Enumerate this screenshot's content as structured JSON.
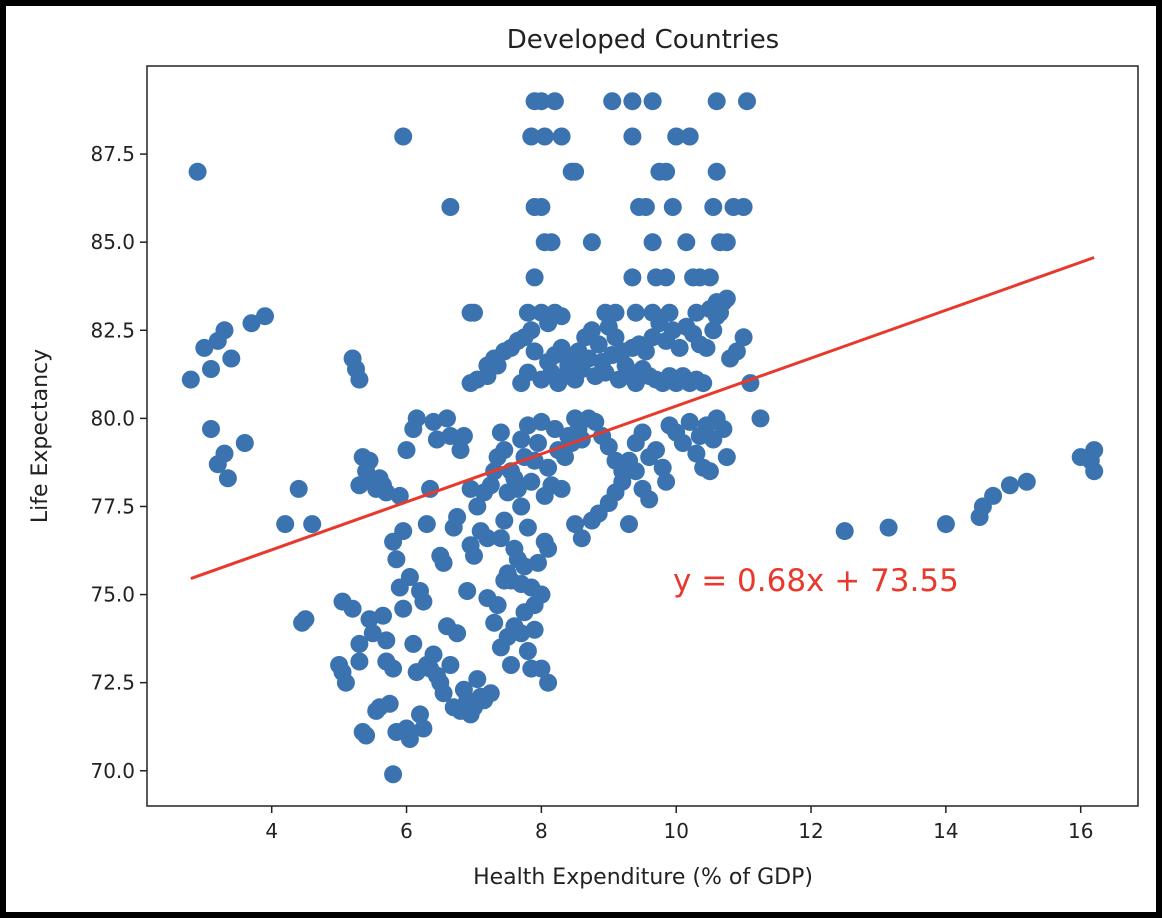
{
  "chart_data": {
    "type": "scatter",
    "title": "Developed Countries",
    "xlabel": "Health Expenditure (% of GDP)",
    "ylabel": "Life Expectancy",
    "xlim": [
      2.15,
      16.85
    ],
    "ylim": [
      69.0,
      90.0
    ],
    "xticks": [
      4,
      6,
      8,
      10,
      12,
      14,
      16
    ],
    "xtick_labels": [
      "4",
      "6",
      "8",
      "10",
      "12",
      "14",
      "16"
    ],
    "yticks": [
      70.0,
      72.5,
      75.0,
      77.5,
      80.0,
      82.5,
      85.0,
      87.5
    ],
    "ytick_labels": [
      "70.0",
      "72.5",
      "75.0",
      "77.5",
      "80.0",
      "82.5",
      "85.0",
      "87.5"
    ],
    "grid": false,
    "point_color": "#3b73b0",
    "line_color": "#e8392c",
    "regression": {
      "slope": 0.68,
      "intercept": 73.55,
      "x_range": [
        2.8,
        16.2
      ],
      "label": "y = 0.68x + 73.55"
    },
    "points": [
      [
        2.9,
        87.0
      ],
      [
        2.8,
        81.1
      ],
      [
        3.0,
        82.0
      ],
      [
        3.1,
        81.4
      ],
      [
        3.2,
        82.2
      ],
      [
        3.3,
        82.5
      ],
      [
        3.4,
        81.7
      ],
      [
        3.1,
        79.7
      ],
      [
        3.2,
        78.7
      ],
      [
        3.3,
        79.0
      ],
      [
        3.35,
        78.3
      ],
      [
        3.6,
        79.3
      ],
      [
        3.7,
        82.7
      ],
      [
        3.9,
        82.9
      ],
      [
        4.2,
        77.0
      ],
      [
        4.4,
        78.0
      ],
      [
        4.6,
        77.0
      ],
      [
        4.5,
        74.3
      ],
      [
        4.45,
        74.2
      ],
      [
        5.0,
        73.0
      ],
      [
        5.05,
        72.8
      ],
      [
        5.1,
        72.5
      ],
      [
        5.05,
        74.8
      ],
      [
        5.2,
        74.6
      ],
      [
        5.3,
        73.6
      ],
      [
        5.3,
        73.1
      ],
      [
        5.35,
        71.1
      ],
      [
        5.4,
        71.0
      ],
      [
        5.45,
        74.3
      ],
      [
        5.5,
        73.9
      ],
      [
        5.55,
        71.7
      ],
      [
        5.6,
        71.8
      ],
      [
        5.65,
        74.4
      ],
      [
        5.7,
        73.7
      ],
      [
        5.7,
        73.1
      ],
      [
        5.75,
        71.9
      ],
      [
        5.8,
        72.9
      ],
      [
        5.8,
        69.9
      ],
      [
        5.85,
        71.1
      ],
      [
        5.9,
        75.2
      ],
      [
        5.95,
        74.6
      ],
      [
        6.0,
        71.2
      ],
      [
        6.05,
        70.9
      ],
      [
        6.1,
        73.6
      ],
      [
        6.15,
        72.8
      ],
      [
        6.2,
        71.6
      ],
      [
        6.25,
        71.2
      ],
      [
        6.3,
        73.0
      ],
      [
        6.35,
        72.9
      ],
      [
        6.4,
        73.3
      ],
      [
        6.45,
        72.7
      ],
      [
        6.5,
        72.5
      ],
      [
        6.55,
        72.2
      ],
      [
        6.6,
        74.1
      ],
      [
        6.65,
        73.0
      ],
      [
        6.7,
        71.8
      ],
      [
        6.75,
        73.9
      ],
      [
        6.8,
        71.7
      ],
      [
        6.85,
        72.3
      ],
      [
        6.9,
        72.0
      ],
      [
        6.95,
        71.6
      ],
      [
        7.0,
        71.8
      ],
      [
        7.05,
        72.6
      ],
      [
        7.1,
        72.1
      ],
      [
        7.15,
        72.0
      ],
      [
        7.25,
        72.2
      ],
      [
        5.2,
        81.7
      ],
      [
        5.25,
        81.4
      ],
      [
        5.3,
        81.1
      ],
      [
        5.3,
        78.1
      ],
      [
        5.35,
        78.9
      ],
      [
        5.4,
        78.5
      ],
      [
        5.45,
        78.8
      ],
      [
        5.5,
        78.2
      ],
      [
        5.55,
        78.0
      ],
      [
        5.6,
        78.3
      ],
      [
        5.65,
        78.1
      ],
      [
        5.7,
        77.9
      ],
      [
        5.8,
        76.5
      ],
      [
        5.9,
        77.8
      ],
      [
        5.85,
        76.0
      ],
      [
        5.95,
        76.8
      ],
      [
        6.0,
        79.1
      ],
      [
        6.05,
        75.5
      ],
      [
        6.1,
        79.7
      ],
      [
        6.15,
        80.0
      ],
      [
        6.2,
        75.1
      ],
      [
        6.25,
        74.8
      ],
      [
        6.3,
        77.0
      ],
      [
        6.35,
        78.0
      ],
      [
        6.4,
        79.9
      ],
      [
        6.45,
        79.4
      ],
      [
        6.5,
        76.1
      ],
      [
        6.55,
        75.9
      ],
      [
        6.6,
        80.0
      ],
      [
        6.65,
        79.5
      ],
      [
        6.7,
        76.9
      ],
      [
        6.75,
        77.2
      ],
      [
        6.8,
        79.1
      ],
      [
        6.85,
        79.5
      ],
      [
        6.9,
        75.1
      ],
      [
        6.95,
        76.4
      ],
      [
        6.95,
        78.0
      ],
      [
        7.0,
        76.1
      ],
      [
        7.05,
        77.5
      ],
      [
        7.1,
        76.8
      ],
      [
        7.15,
        77.9
      ],
      [
        7.2,
        76.6
      ],
      [
        7.25,
        78.1
      ],
      [
        6.65,
        86.0
      ],
      [
        5.95,
        88.0
      ],
      [
        6.95,
        83.0
      ],
      [
        7.0,
        83.0
      ],
      [
        6.95,
        81.0
      ],
      [
        7.05,
        81.1
      ],
      [
        7.2,
        81.5
      ],
      [
        7.3,
        81.7
      ],
      [
        7.45,
        81.9
      ],
      [
        7.55,
        82.0
      ],
      [
        7.65,
        82.2
      ],
      [
        7.75,
        82.3
      ],
      [
        7.85,
        82.5
      ],
      [
        7.3,
        78.5
      ],
      [
        7.35,
        78.9
      ],
      [
        7.4,
        79.6
      ],
      [
        7.45,
        79.1
      ],
      [
        7.5,
        77.9
      ],
      [
        7.55,
        78.5
      ],
      [
        7.6,
        78.3
      ],
      [
        7.65,
        78.0
      ],
      [
        7.7,
        79.4
      ],
      [
        7.75,
        78.9
      ],
      [
        7.8,
        79.8
      ],
      [
        7.85,
        78.2
      ],
      [
        7.9,
        78.8
      ],
      [
        7.95,
        79.3
      ],
      [
        8.0,
        79.9
      ],
      [
        8.05,
        77.8
      ],
      [
        8.1,
        78.6
      ],
      [
        8.15,
        78.1
      ],
      [
        8.2,
        79.7
      ],
      [
        8.25,
        79.1
      ],
      [
        8.3,
        78.0
      ],
      [
        8.35,
        78.9
      ],
      [
        8.4,
        79.5
      ],
      [
        8.45,
        79.3
      ],
      [
        8.5,
        80.0
      ],
      [
        8.55,
        79.7
      ],
      [
        8.6,
        79.4
      ],
      [
        8.7,
        80.0
      ],
      [
        8.8,
        79.9
      ],
      [
        8.9,
        79.5
      ],
      [
        9.0,
        79.2
      ],
      [
        9.1,
        78.8
      ],
      [
        9.2,
        78.5
      ],
      [
        9.3,
        78.8
      ],
      [
        9.4,
        79.3
      ],
      [
        9.5,
        79.6
      ],
      [
        9.6,
        78.9
      ],
      [
        9.7,
        79.1
      ],
      [
        7.4,
        76.6
      ],
      [
        7.45,
        77.1
      ],
      [
        7.5,
        75.6
      ],
      [
        7.55,
        75.4
      ],
      [
        7.6,
        76.3
      ],
      [
        7.65,
        76.0
      ],
      [
        7.7,
        77.5
      ],
      [
        7.75,
        75.8
      ],
      [
        7.8,
        76.9
      ],
      [
        7.85,
        75.2
      ],
      [
        7.9,
        74.7
      ],
      [
        7.95,
        75.9
      ],
      [
        8.0,
        75.0
      ],
      [
        8.05,
        76.5
      ],
      [
        8.1,
        76.3
      ],
      [
        8.5,
        77.0
      ],
      [
        8.6,
        76.6
      ],
      [
        8.75,
        77.1
      ],
      [
        8.85,
        77.3
      ],
      [
        9.0,
        77.6
      ],
      [
        9.1,
        77.9
      ],
      [
        9.2,
        78.2
      ],
      [
        9.3,
        77.0
      ],
      [
        9.4,
        78.5
      ],
      [
        9.5,
        78.0
      ],
      [
        9.6,
        77.7
      ],
      [
        7.2,
        74.9
      ],
      [
        7.3,
        74.2
      ],
      [
        7.35,
        74.7
      ],
      [
        7.4,
        73.5
      ],
      [
        7.45,
        75.4
      ],
      [
        7.5,
        73.8
      ],
      [
        7.55,
        73.0
      ],
      [
        7.6,
        74.1
      ],
      [
        7.7,
        73.9
      ],
      [
        7.75,
        74.5
      ],
      [
        7.8,
        73.4
      ],
      [
        7.85,
        72.9
      ],
      [
        7.9,
        74.0
      ],
      [
        8.0,
        72.9
      ],
      [
        8.1,
        72.5
      ],
      [
        8.0,
        75.0
      ],
      [
        7.7,
        75.3
      ],
      [
        7.2,
        81.2
      ],
      [
        7.35,
        81.5
      ],
      [
        7.7,
        81.0
      ],
      [
        7.8,
        81.3
      ],
      [
        7.9,
        81.9
      ],
      [
        8.0,
        81.1
      ],
      [
        8.1,
        81.6
      ],
      [
        8.15,
        81.3
      ],
      [
        8.2,
        81.8
      ],
      [
        8.25,
        81.0
      ],
      [
        8.3,
        82.0
      ],
      [
        8.35,
        81.2
      ],
      [
        8.4,
        81.5
      ],
      [
        8.45,
        81.7
      ],
      [
        8.5,
        81.1
      ],
      [
        8.55,
        81.9
      ],
      [
        8.6,
        81.4
      ],
      [
        8.65,
        82.3
      ],
      [
        8.7,
        81.7
      ],
      [
        8.75,
        82.5
      ],
      [
        8.8,
        81.2
      ],
      [
        8.85,
        82.1
      ],
      [
        8.9,
        81.6
      ],
      [
        8.95,
        81.3
      ],
      [
        9.0,
        82.6
      ],
      [
        9.05,
        81.8
      ],
      [
        9.1,
        82.3
      ],
      [
        9.15,
        81.1
      ],
      [
        9.2,
        81.9
      ],
      [
        9.25,
        81.5
      ],
      [
        9.3,
        81.2
      ],
      [
        9.4,
        81.0
      ],
      [
        9.5,
        81.4
      ],
      [
        9.6,
        81.2
      ],
      [
        9.7,
        81.1
      ],
      [
        9.8,
        81.0
      ],
      [
        9.9,
        81.2
      ],
      [
        10.0,
        81.0
      ],
      [
        10.1,
        81.2
      ],
      [
        10.2,
        81.0
      ],
      [
        10.3,
        81.1
      ],
      [
        10.4,
        81.0
      ],
      [
        9.35,
        82.0
      ],
      [
        9.45,
        82.1
      ],
      [
        9.55,
        81.9
      ],
      [
        9.65,
        82.3
      ],
      [
        9.75,
        82.7
      ],
      [
        9.85,
        82.2
      ],
      [
        9.95,
        82.5
      ],
      [
        10.05,
        82.0
      ],
      [
        10.15,
        82.6
      ],
      [
        10.25,
        82.4
      ],
      [
        10.35,
        82.1
      ],
      [
        10.45,
        82.0
      ],
      [
        10.55,
        82.5
      ],
      [
        10.6,
        82.9
      ],
      [
        10.65,
        83.0
      ],
      [
        10.7,
        83.3
      ],
      [
        10.75,
        83.4
      ],
      [
        10.8,
        81.7
      ],
      [
        10.9,
        81.9
      ],
      [
        11.0,
        82.3
      ],
      [
        11.1,
        81.0
      ],
      [
        11.25,
        80.0
      ],
      [
        9.9,
        79.8
      ],
      [
        10.0,
        79.6
      ],
      [
        10.1,
        79.3
      ],
      [
        10.2,
        79.9
      ],
      [
        10.3,
        79.0
      ],
      [
        10.35,
        79.5
      ],
      [
        10.4,
        78.6
      ],
      [
        10.45,
        79.8
      ],
      [
        10.5,
        78.5
      ],
      [
        10.55,
        79.4
      ],
      [
        10.6,
        80.0
      ],
      [
        10.7,
        79.7
      ],
      [
        10.75,
        78.9
      ],
      [
        9.8,
        78.6
      ],
      [
        9.85,
        78.2
      ],
      [
        7.8,
        83.0
      ],
      [
        7.9,
        84.0
      ],
      [
        8.0,
        83.0
      ],
      [
        8.1,
        82.7
      ],
      [
        8.2,
        83.0
      ],
      [
        8.3,
        82.9
      ],
      [
        8.95,
        83.0
      ],
      [
        9.1,
        83.0
      ],
      [
        9.4,
        83.0
      ],
      [
        9.65,
        83.0
      ],
      [
        9.9,
        83.0
      ],
      [
        10.3,
        83.0
      ],
      [
        10.5,
        83.1
      ],
      [
        10.6,
        83.3
      ],
      [
        7.9,
        86.0
      ],
      [
        8.0,
        86.0
      ],
      [
        8.05,
        85.0
      ],
      [
        8.15,
        85.0
      ],
      [
        8.45,
        87.0
      ],
      [
        8.5,
        87.0
      ],
      [
        8.75,
        85.0
      ],
      [
        9.35,
        84.0
      ],
      [
        9.45,
        86.0
      ],
      [
        9.55,
        86.0
      ],
      [
        9.65,
        85.0
      ],
      [
        9.7,
        84.0
      ],
      [
        9.75,
        87.0
      ],
      [
        9.85,
        84.0
      ],
      [
        9.95,
        86.0
      ],
      [
        10.15,
        85.0
      ],
      [
        10.25,
        84.0
      ],
      [
        10.35,
        84.0
      ],
      [
        10.5,
        84.0
      ],
      [
        10.55,
        86.0
      ],
      [
        10.65,
        85.0
      ],
      [
        10.75,
        85.0
      ],
      [
        10.85,
        86.0
      ],
      [
        11.0,
        86.0
      ],
      [
        9.85,
        87.0
      ],
      [
        10.6,
        87.0
      ],
      [
        7.85,
        88.0
      ],
      [
        8.05,
        88.0
      ],
      [
        8.3,
        88.0
      ],
      [
        9.35,
        88.0
      ],
      [
        10.0,
        88.0
      ],
      [
        10.2,
        88.0
      ],
      [
        7.9,
        89.0
      ],
      [
        8.0,
        89.0
      ],
      [
        8.2,
        89.0
      ],
      [
        9.05,
        89.0
      ],
      [
        9.35,
        89.0
      ],
      [
        9.65,
        89.0
      ],
      [
        10.6,
        89.0
      ],
      [
        11.05,
        89.0
      ],
      [
        12.5,
        76.8
      ],
      [
        13.15,
        76.9
      ],
      [
        14.0,
        77.0
      ],
      [
        14.5,
        77.2
      ],
      [
        14.55,
        77.5
      ],
      [
        14.7,
        77.8
      ],
      [
        14.95,
        78.1
      ],
      [
        15.2,
        78.2
      ],
      [
        16.0,
        78.9
      ],
      [
        16.15,
        78.8
      ],
      [
        16.2,
        79.1
      ],
      [
        16.2,
        78.5
      ]
    ]
  }
}
